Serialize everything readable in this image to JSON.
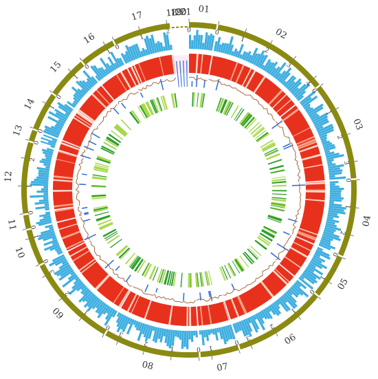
{
  "colors": {
    "ideogram": "#8a8a12",
    "histogram": "#3daee0",
    "heatmap": "#e8311d",
    "heatmap_light": "#f6a689",
    "line_track": "#9a5a2a",
    "spike_track": "#3a6fd8",
    "inner_green_dark": "#2e9e2e",
    "inner_green_light": "#a8d84a",
    "highlight_band": "#f3c6e6"
  },
  "chart_data": {
    "type": "circos",
    "title": "",
    "chromosomes": [
      {
        "name": "01",
        "length": 1,
        "ticks": [
          0
        ]
      },
      {
        "name": "02",
        "length": 4.3,
        "ticks": [
          0,
          1,
          2,
          3,
          4
        ]
      },
      {
        "name": "03",
        "length": 3.6,
        "ticks": [
          0,
          1,
          2,
          3
        ]
      },
      {
        "name": "04",
        "length": 2.8,
        "ticks": [
          0,
          1,
          2
        ]
      },
      {
        "name": "05",
        "length": 1.6,
        "ticks": [
          0,
          1
        ]
      },
      {
        "name": "06",
        "length": 3.4,
        "ticks": [
          0,
          1,
          2,
          3
        ]
      },
      {
        "name": "07",
        "length": 1.4,
        "ticks": [
          0,
          1
        ]
      },
      {
        "name": "08",
        "length": 3.5,
        "ticks": [
          0,
          1,
          2,
          3
        ]
      },
      {
        "name": "09",
        "length": 3.4,
        "ticks": [
          0,
          1,
          2,
          3
        ]
      },
      {
        "name": "10",
        "length": 1.3,
        "ticks": [
          0,
          1
        ]
      },
      {
        "name": "11",
        "length": 0.5,
        "ticks": [
          0
        ]
      },
      {
        "name": "12",
        "length": 2.6,
        "ticks": [
          0,
          1,
          2
        ]
      },
      {
        "name": "13",
        "length": 0.4,
        "ticks": [
          0
        ]
      },
      {
        "name": "14",
        "length": 1.4,
        "ticks": [
          0,
          1
        ]
      },
      {
        "name": "15",
        "length": 1.5,
        "ticks": [
          0,
          1
        ]
      },
      {
        "name": "16",
        "length": 1.3,
        "ticks": [
          0,
          1
        ]
      },
      {
        "name": "17",
        "length": 2.1,
        "ticks": [
          0,
          1,
          2
        ]
      },
      {
        "name": "18",
        "length": 0.1,
        "ticks": []
      },
      {
        "name": "19",
        "length": 0.1,
        "ticks": []
      },
      {
        "name": "20",
        "length": 0.1,
        "ticks": []
      },
      {
        "name": "21",
        "length": 0.1,
        "ticks": []
      }
    ],
    "tracks": [
      {
        "name": "",
        "kind": "ideogram"
      },
      {
        "name": "",
        "kind": "histogram"
      },
      {
        "name": "",
        "kind": "heatmap"
      },
      {
        "name": "",
        "kind": "line"
      },
      {
        "name": "",
        "kind": "spikes"
      },
      {
        "name": "",
        "kind": "tiles"
      }
    ]
  }
}
